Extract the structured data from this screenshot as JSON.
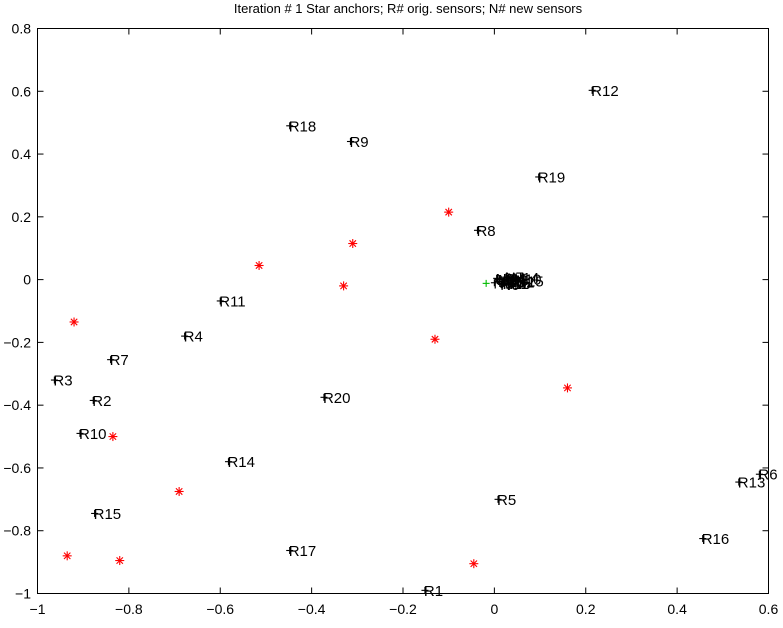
{
  "chart_data": {
    "type": "scatter",
    "title": "Iteration # 1 Star anchors; R# orig. sensors; N# new sensors",
    "xlim": [
      -1,
      0.6
    ],
    "ylim": [
      -1,
      0.8
    ],
    "xticks": [
      -1,
      -0.8,
      -0.6,
      -0.4,
      -0.2,
      0,
      0.2,
      0.4,
      0.6
    ],
    "xtick_labels": [
      "−1",
      "−0.8",
      "−0.6",
      "−0.4",
      "−0.2",
      "0",
      "0.2",
      "0.4",
      "0.6"
    ],
    "yticks": [
      -1,
      -0.8,
      -0.6,
      -0.4,
      -0.2,
      0,
      0.2,
      0.4,
      0.6,
      0.8
    ],
    "ytick_labels": [
      "−1",
      "−0.8",
      "−0.6",
      "−0.4",
      "−0.2",
      "0",
      "0.2",
      "0.4",
      "0.6",
      "0.8"
    ],
    "grid": false,
    "colors": {
      "anchor": "#ff0000",
      "sensor": "#000000",
      "cluster_accent": "#00bb00"
    },
    "series": [
      {
        "marker": "star",
        "color": "#ff0000",
        "points": [
          [
            -0.1,
            0.215
          ],
          [
            -0.31,
            0.115
          ],
          [
            -0.515,
            0.045
          ],
          [
            -0.33,
            -0.02
          ],
          [
            -0.92,
            -0.135
          ],
          [
            -0.13,
            -0.19
          ],
          [
            0.16,
            -0.345
          ],
          [
            -0.835,
            -0.5
          ],
          [
            -0.69,
            -0.675
          ],
          [
            -0.935,
            -0.88
          ],
          [
            -0.82,
            -0.895
          ],
          [
            -0.045,
            -0.905
          ]
        ]
      },
      {
        "marker": "plus",
        "color": "#000000",
        "points": [
          {
            "x": -0.152,
            "y": -0.99,
            "label": "R1"
          },
          {
            "x": -0.878,
            "y": -0.385,
            "label": "R2"
          },
          {
            "x": -0.963,
            "y": -0.32,
            "label": "R3"
          },
          {
            "x": -0.678,
            "y": -0.18,
            "label": "R4"
          },
          {
            "x": 0.008,
            "y": -0.7,
            "label": "R5"
          },
          {
            "x": 0.58,
            "y": -0.62,
            "label": "R6"
          },
          {
            "x": -0.84,
            "y": -0.255,
            "label": "R7"
          },
          {
            "x": -0.037,
            "y": 0.157,
            "label": "R8"
          },
          {
            "x": -0.315,
            "y": 0.44,
            "label": "R9"
          },
          {
            "x": -0.907,
            "y": -0.49,
            "label": "R10"
          },
          {
            "x": -0.6,
            "y": -0.068,
            "label": "R11"
          },
          {
            "x": 0.214,
            "y": 0.603,
            "label": "R12"
          },
          {
            "x": 0.535,
            "y": -0.645,
            "label": "R13"
          },
          {
            "x": -0.582,
            "y": -0.58,
            "label": "R14"
          },
          {
            "x": -0.875,
            "y": -0.745,
            "label": "R15"
          },
          {
            "x": 0.456,
            "y": -0.825,
            "label": "R16"
          },
          {
            "x": -0.448,
            "y": -0.863,
            "label": "R17"
          },
          {
            "x": -0.448,
            "y": 0.49,
            "label": "R18"
          },
          {
            "x": 0.097,
            "y": 0.327,
            "label": "R19"
          },
          {
            "x": -0.373,
            "y": -0.375,
            "label": "R20"
          }
        ]
      }
    ],
    "cluster": {
      "note_labels": [
        "N1",
        "N2",
        "N3",
        "N4",
        "N5",
        "N6",
        "N7",
        "N8",
        "N9",
        "N10",
        "N11",
        "N12",
        "N13",
        "N14",
        "N15"
      ],
      "points": [
        [
          0.0,
          -0.01
        ],
        [
          0.01,
          0.0
        ],
        [
          0.02,
          -0.005
        ],
        [
          0.03,
          0.005
        ],
        [
          0.04,
          -0.012
        ],
        [
          0.015,
          -0.015
        ],
        [
          0.025,
          0.008
        ],
        [
          0.035,
          -0.002
        ],
        [
          0.005,
          0.004
        ],
        [
          0.045,
          0.002
        ],
        [
          0.02,
          -0.012
        ],
        [
          0.03,
          -0.008
        ],
        [
          0.01,
          -0.006
        ],
        [
          0.04,
          0.006
        ],
        [
          0.05,
          -0.004
        ]
      ],
      "accent_point": [
        -0.018,
        -0.012
      ]
    }
  }
}
